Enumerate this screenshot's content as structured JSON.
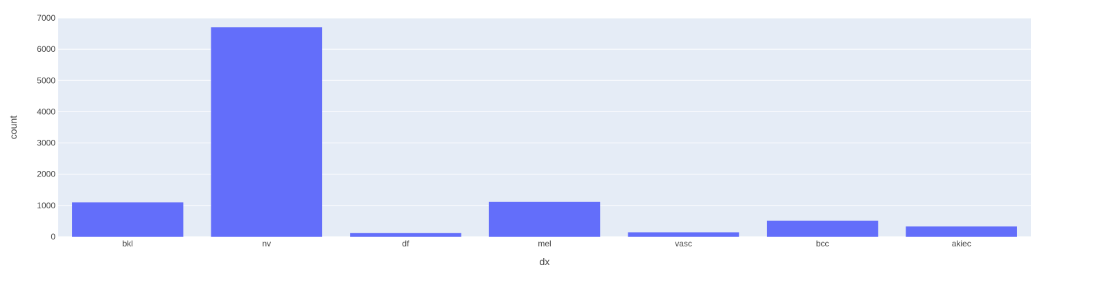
{
  "chart_data": {
    "type": "bar",
    "categories": [
      "bkl",
      "nv",
      "df",
      "mel",
      "vasc",
      "bcc",
      "akiec"
    ],
    "values": [
      1099,
      6705,
      115,
      1113,
      142,
      514,
      327
    ],
    "xlabel": "dx",
    "ylabel": "count",
    "ylim": [
      0,
      7000
    ],
    "yticks": [
      0,
      1000,
      2000,
      3000,
      4000,
      5000,
      6000,
      7000
    ],
    "ytick_labels": [
      "0",
      "1000",
      "2000",
      "3000",
      "4000",
      "5000",
      "6000",
      "7000"
    ],
    "grid": true,
    "legend": "none",
    "colors": {
      "bar": "#636efa",
      "plot_bg": "#e5ecf6",
      "grid": "#ffffff",
      "text": "#444444"
    }
  }
}
